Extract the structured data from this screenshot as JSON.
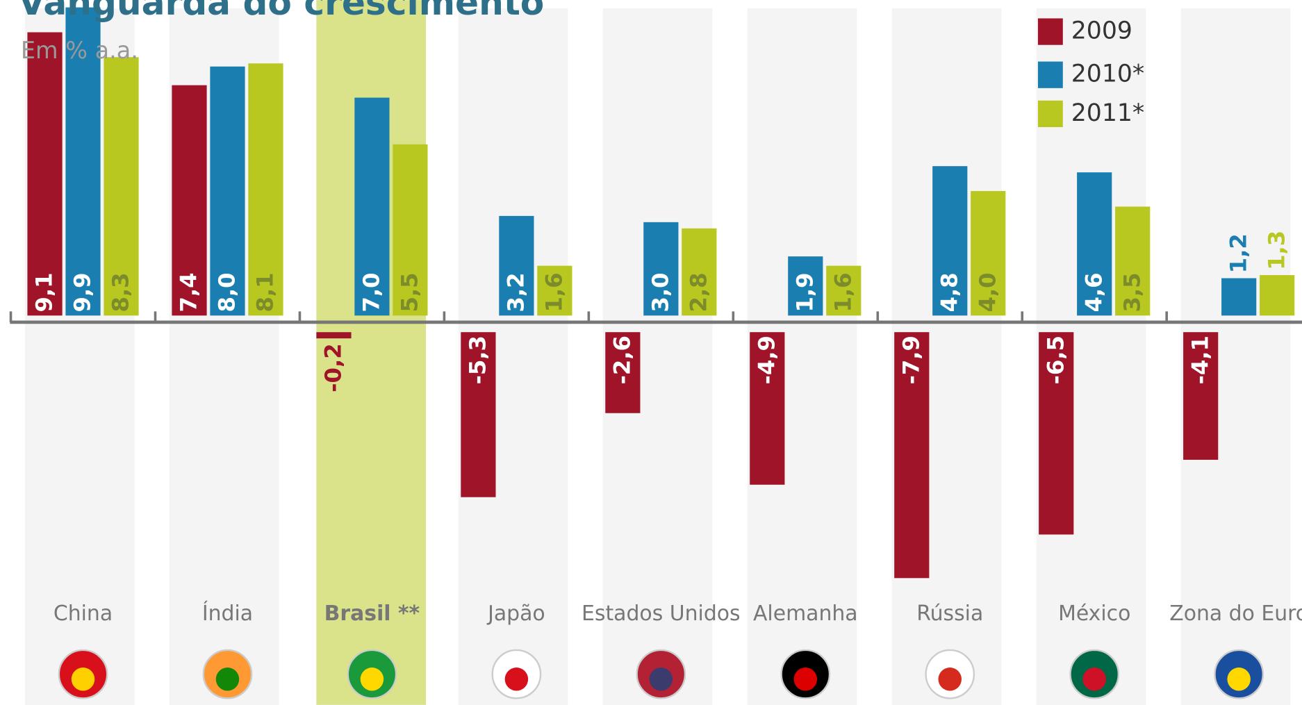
{
  "chart_data": {
    "type": "bar",
    "title": "Vanguarda do crescimento",
    "subtitle": "Em % a.a.",
    "categories": [
      "China",
      "Índia",
      "Brasil **",
      "Japão",
      "Estados Unidos",
      "Alemanha",
      "Rússia",
      "México",
      "Zona do Euro"
    ],
    "highlight": "Brasil **",
    "series": [
      {
        "name": "2009",
        "color": "#a0142a",
        "values": [
          9.1,
          7.4,
          -0.2,
          -5.3,
          -2.6,
          -4.9,
          -7.9,
          -6.5,
          -4.1
        ],
        "value_labels": [
          "9,1",
          "7,4",
          "-0,2",
          "-5,3",
          "-2,6",
          "-4,9",
          "-7,9",
          "-6,5",
          "-4,1"
        ]
      },
      {
        "name": "2010*",
        "color": "#1a7fb0",
        "values": [
          9.9,
          8.0,
          7.0,
          3.2,
          3.0,
          1.9,
          4.8,
          4.6,
          1.2
        ],
        "value_labels": [
          "9,9",
          "8,0",
          "7,0",
          "3,2",
          "3,0",
          "1,9",
          "4,8",
          "4,6",
          "1,2"
        ]
      },
      {
        "name": "2011*",
        "color": "#b8c820",
        "values": [
          8.3,
          8.1,
          5.5,
          1.6,
          2.8,
          1.6,
          4.0,
          3.5,
          1.3
        ],
        "value_labels": [
          "8,3",
          "8,1",
          "5,5",
          "1,6",
          "2,8",
          "1,6",
          "4,0",
          "3,5",
          "1,3"
        ]
      }
    ]
  }
}
